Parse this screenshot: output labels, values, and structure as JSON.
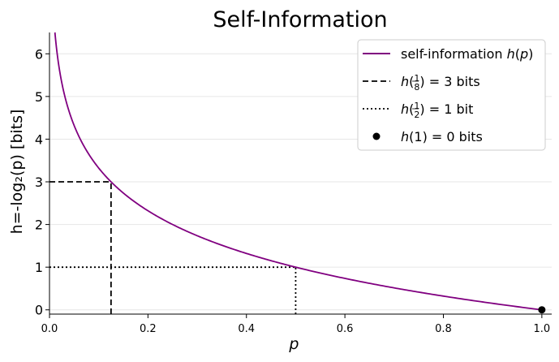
{
  "chart_data": {
    "type": "line",
    "title": "Self-Information",
    "xlabel": "p",
    "ylabel": "h=-log₂(p)  [bits]",
    "xlim": [
      0.0,
      1.02
    ],
    "ylim": [
      -0.1,
      6.5
    ],
    "xticks": [
      "0.0",
      "0.2",
      "0.4",
      "0.6",
      "0.8",
      "1.0"
    ],
    "yticks": [
      "0",
      "1",
      "2",
      "3",
      "4",
      "5",
      "6"
    ],
    "grid": "horizontal",
    "legend_position": "top-right",
    "series": [
      {
        "name": "self-information h(p)",
        "kind": "curve",
        "function": "-log2(p)",
        "x": [
          0.01,
          0.02,
          0.05,
          0.1,
          0.125,
          0.2,
          0.3,
          0.4,
          0.5,
          0.6,
          0.7,
          0.8,
          0.9,
          1.0
        ],
        "y": [
          6.64,
          5.64,
          4.32,
          3.32,
          3.0,
          2.32,
          1.74,
          1.32,
          1.0,
          0.74,
          0.51,
          0.32,
          0.15,
          0.0
        ],
        "color": "#800080",
        "style": "solid"
      },
      {
        "name": "h(1/8) = 3 bits",
        "kind": "reference",
        "x": 0.125,
        "y": 3,
        "color": "#000000",
        "style": "dashed"
      },
      {
        "name": "h(1/2) = 1 bit",
        "kind": "reference",
        "x": 0.5,
        "y": 1,
        "color": "#000000",
        "style": "dotted"
      },
      {
        "name": "h(1) = 0 bits",
        "kind": "point",
        "x": 1.0,
        "y": 0,
        "color": "#000000",
        "style": "marker"
      }
    ],
    "legend": [
      {
        "prefix": "self-information ",
        "func": "h",
        "arg": "(p)",
        "suffix": ""
      },
      {
        "prefix": "",
        "func": "h",
        "frac_num": "1",
        "frac_den": "8",
        "suffix": " = 3 bits"
      },
      {
        "prefix": "",
        "func": "h",
        "frac_num": "1",
        "frac_den": "2",
        "suffix": " = 1 bit"
      },
      {
        "prefix": "",
        "func": "h",
        "arg": "(1)",
        "suffix": " = 0 bits"
      }
    ]
  }
}
